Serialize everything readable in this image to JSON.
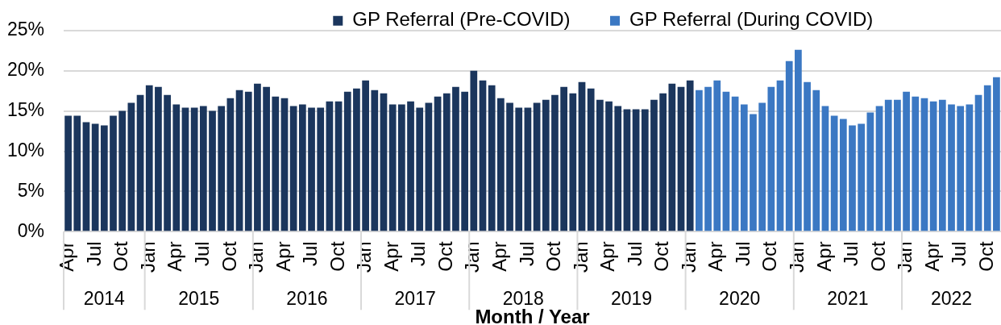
{
  "chart_data": {
    "type": "bar",
    "xlabel": "Month / Year",
    "x": [
      "2014-04",
      "2014-05",
      "2014-06",
      "2014-07",
      "2014-08",
      "2014-09",
      "2014-10",
      "2014-11",
      "2014-12",
      "2015-01",
      "2015-02",
      "2015-03",
      "2015-04",
      "2015-05",
      "2015-06",
      "2015-07",
      "2015-08",
      "2015-09",
      "2015-10",
      "2015-11",
      "2015-12",
      "2016-01",
      "2016-02",
      "2016-03",
      "2016-04",
      "2016-05",
      "2016-06",
      "2016-07",
      "2016-08",
      "2016-09",
      "2016-10",
      "2016-11",
      "2016-12",
      "2017-01",
      "2017-02",
      "2017-03",
      "2017-04",
      "2017-05",
      "2017-06",
      "2017-07",
      "2017-08",
      "2017-09",
      "2017-10",
      "2017-11",
      "2017-12",
      "2018-01",
      "2018-02",
      "2018-03",
      "2018-04",
      "2018-05",
      "2018-06",
      "2018-07",
      "2018-08",
      "2018-09",
      "2018-10",
      "2018-11",
      "2018-12",
      "2019-01",
      "2019-02",
      "2019-03",
      "2019-04",
      "2019-05",
      "2019-06",
      "2019-07",
      "2019-08",
      "2019-09",
      "2019-10",
      "2019-11",
      "2019-12",
      "2020-01",
      "2020-02",
      "2020-03",
      "2020-04",
      "2020-05",
      "2020-06",
      "2020-07",
      "2020-08",
      "2020-09",
      "2020-10",
      "2020-11",
      "2020-12",
      "2021-01",
      "2021-02",
      "2021-03",
      "2021-04",
      "2021-05",
      "2021-06",
      "2021-07",
      "2021-08",
      "2021-09",
      "2021-10",
      "2021-11",
      "2021-12",
      "2022-01",
      "2022-02",
      "2022-03",
      "2022-04",
      "2022-05",
      "2022-06",
      "2022-07",
      "2022-08",
      "2022-09",
      "2022-10",
      "2022-11"
    ],
    "xlim": [
      "2014-04",
      "2022-11"
    ],
    "xticks": [
      {
        "value": "2014-04",
        "label": "Apr"
      },
      {
        "value": "2014-07",
        "label": "Jul"
      },
      {
        "value": "2014-10",
        "label": "Oct"
      },
      {
        "value": "2015-01",
        "label": "Jan"
      },
      {
        "value": "2015-04",
        "label": "Apr"
      },
      {
        "value": "2015-07",
        "label": "Jul"
      },
      {
        "value": "2015-10",
        "label": "Oct"
      },
      {
        "value": "2016-01",
        "label": "Jan"
      },
      {
        "value": "2016-04",
        "label": "Apr"
      },
      {
        "value": "2016-07",
        "label": "Jul"
      },
      {
        "value": "2016-10",
        "label": "Oct"
      },
      {
        "value": "2017-01",
        "label": "Jan"
      },
      {
        "value": "2017-04",
        "label": "Apr"
      },
      {
        "value": "2017-07",
        "label": "Jul"
      },
      {
        "value": "2017-10",
        "label": "Oct"
      },
      {
        "value": "2018-01",
        "label": "Jan"
      },
      {
        "value": "2018-04",
        "label": "Apr"
      },
      {
        "value": "2018-07",
        "label": "Jul"
      },
      {
        "value": "2018-10",
        "label": "Oct"
      },
      {
        "value": "2019-01",
        "label": "Jan"
      },
      {
        "value": "2019-04",
        "label": "Apr"
      },
      {
        "value": "2019-07",
        "label": "Jul"
      },
      {
        "value": "2019-10",
        "label": "Oct"
      },
      {
        "value": "2020-01",
        "label": "Jan"
      },
      {
        "value": "2020-04",
        "label": "Apr"
      },
      {
        "value": "2020-07",
        "label": "Jul"
      },
      {
        "value": "2020-10",
        "label": "Oct"
      },
      {
        "value": "2021-01",
        "label": "Jan"
      },
      {
        "value": "2021-04",
        "label": "Apr"
      },
      {
        "value": "2021-07",
        "label": "Jul"
      },
      {
        "value": "2021-10",
        "label": "Oct"
      },
      {
        "value": "2022-01",
        "label": "Jan"
      },
      {
        "value": "2022-04",
        "label": "Apr"
      },
      {
        "value": "2022-07",
        "label": "Jul"
      },
      {
        "value": "2022-10",
        "label": "Oct"
      }
    ],
    "annotations": [
      "2014",
      "2015",
      "2016",
      "2017",
      "2018",
      "2019",
      "2020",
      "2021",
      "2022"
    ],
    "series": [
      {
        "name": "GP Referral (Pre-COVID)",
        "color": "#1b365d",
        "values": [
          14.4,
          14.4,
          13.6,
          13.4,
          13.2,
          14.4,
          15,
          16,
          17,
          18.2,
          18,
          17,
          15.8,
          15.4,
          15.4,
          15.6,
          15,
          15.6,
          16.6,
          17.6,
          17.4,
          18.4,
          18,
          16.8,
          16.6,
          15.6,
          15.8,
          15.4,
          15.4,
          16.2,
          16.2,
          17.4,
          17.8,
          18.8,
          17.6,
          17.2,
          15.8,
          15.8,
          16.2,
          15.4,
          16,
          16.8,
          17.2,
          18,
          17.4,
          20,
          18.8,
          18.2,
          16.6,
          16,
          15.4,
          15.4,
          16,
          16.4,
          17,
          18,
          17.2,
          18.6,
          17.8,
          16.4,
          16.2,
          15.6,
          15.2,
          15.2,
          15.2,
          16.4,
          17.2,
          18.4,
          18,
          18.8,
          null,
          null,
          null,
          null,
          null,
          null,
          null,
          null,
          null,
          null,
          null,
          null,
          null,
          null,
          null,
          null,
          null,
          null,
          null,
          null,
          null,
          null,
          null,
          null,
          null,
          null,
          null,
          null,
          null,
          null,
          null,
          null,
          null,
          null
        ]
      },
      {
        "name": "GP Referral (During COVID)",
        "color": "#3b78c3",
        "values": [
          null,
          null,
          null,
          null,
          null,
          null,
          null,
          null,
          null,
          null,
          null,
          null,
          null,
          null,
          null,
          null,
          null,
          null,
          null,
          null,
          null,
          null,
          null,
          null,
          null,
          null,
          null,
          null,
          null,
          null,
          null,
          null,
          null,
          null,
          null,
          null,
          null,
          null,
          null,
          null,
          null,
          null,
          null,
          null,
          null,
          null,
          null,
          null,
          null,
          null,
          null,
          null,
          null,
          null,
          null,
          null,
          null,
          null,
          null,
          null,
          null,
          null,
          null,
          null,
          null,
          null,
          null,
          null,
          null,
          null,
          17.6,
          18,
          18.8,
          17.4,
          16.8,
          15.8,
          14.6,
          16,
          18,
          18.8,
          21.2,
          22.6,
          18.6,
          17.6,
          15.6,
          14.4,
          14,
          13.2,
          13.4,
          14.8,
          15.6,
          16.4,
          16.4,
          17.4,
          16.8,
          16.6,
          16.2,
          16.4,
          15.8,
          15.6,
          15.8,
          17,
          18.2,
          19.2
        ]
      }
    ],
    "ylim": [
      0,
      25
    ],
    "yticks": [
      {
        "value": 0,
        "label": "0%"
      },
      {
        "value": 5,
        "label": "5%"
      },
      {
        "value": 10,
        "label": "10%"
      },
      {
        "value": 15,
        "label": "15%"
      },
      {
        "value": 20,
        "label": "20%"
      },
      {
        "value": 25,
        "label": "25%"
      }
    ],
    "grid": "y",
    "legend": "top"
  }
}
